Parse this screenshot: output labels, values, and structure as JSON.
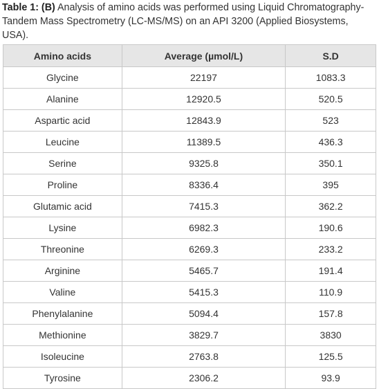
{
  "caption": {
    "label": "Table 1: (B)",
    "text": "Analysis of amino acids was performed using Liquid Chromatography-Tandem Mass Spectrometry (LC-MS/MS) on an API 3200 (Applied Biosystems, USA)."
  },
  "table": {
    "header": [
      "Amino acids",
      "Average (µmol/L)",
      "S.D"
    ],
    "rows": [
      [
        "Glycine",
        "22197",
        "1083.3"
      ],
      [
        "Alanine",
        "12920.5",
        "520.5"
      ],
      [
        "Aspartic acid",
        "12843.9",
        "523"
      ],
      [
        "Leucine",
        "11389.5",
        "436.3"
      ],
      [
        "Serine",
        "9325.8",
        "350.1"
      ],
      [
        "Proline",
        "8336.4",
        "395"
      ],
      [
        "Glutamic acid",
        "7415.3",
        "362.2"
      ],
      [
        "Lysine",
        "6982.3",
        "190.6"
      ],
      [
        "Threonine",
        "6269.3",
        "233.2"
      ],
      [
        "Arginine",
        "5465.7",
        "191.4"
      ],
      [
        "Valine",
        "5415.3",
        "110.9"
      ],
      [
        "Phenylalanine",
        "5094.4",
        "157.8"
      ],
      [
        "Methionine",
        "3829.7",
        "3830"
      ],
      [
        "Isoleucine",
        "2763.8",
        "125.5"
      ],
      [
        "Tyrosine",
        "2306.2",
        "93.9"
      ]
    ]
  }
}
